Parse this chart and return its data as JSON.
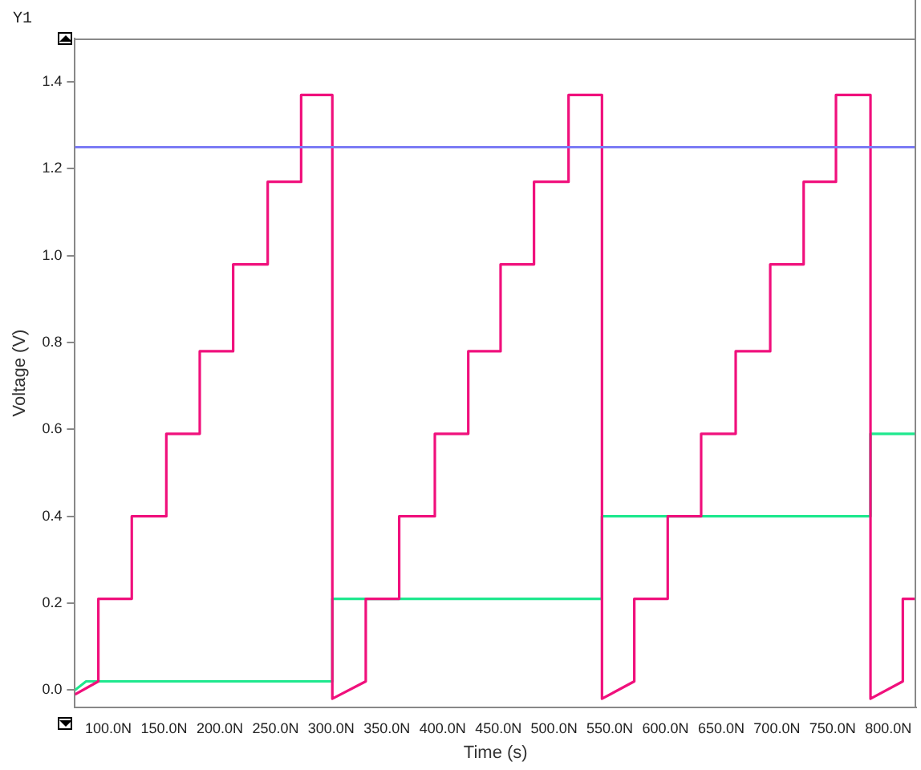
{
  "chart_data": {
    "type": "line",
    "xlabel": "Time (s)",
    "ylabel": "Voltage (V)",
    "annotations": [
      "Y1"
    ],
    "xlim": [
      70,
      825
    ],
    "xticks": [
      {
        "value": 100,
        "label": "100.0N"
      },
      {
        "value": 150,
        "label": "150.0N"
      },
      {
        "value": 200,
        "label": "200.0N"
      },
      {
        "value": 250,
        "label": "250.0N"
      },
      {
        "value": 300,
        "label": "300.0N"
      },
      {
        "value": 350,
        "label": "350.0N"
      },
      {
        "value": 400,
        "label": "400.0N"
      },
      {
        "value": 450,
        "label": "450.0N"
      },
      {
        "value": 500,
        "label": "500.0N"
      },
      {
        "value": 550,
        "label": "550.0N"
      },
      {
        "value": 600,
        "label": "600.0N"
      },
      {
        "value": 650,
        "label": "650.0N"
      },
      {
        "value": 700,
        "label": "700.0N"
      },
      {
        "value": 750,
        "label": "750.0N"
      },
      {
        "value": 800,
        "label": "800.0N"
      }
    ],
    "ylim": [
      -0.04,
      1.5
    ],
    "yticks": [
      {
        "value": 0,
        "label": "0.0"
      },
      0.2,
      0.4,
      0.6,
      0.8,
      {
        "value": 1,
        "label": "1.0"
      },
      1.2,
      1.4
    ],
    "grid": false,
    "legend": false,
    "marker": "none",
    "line_style": "solid",
    "ref_lines": [
      {
        "axis": "y",
        "value": 1.25,
        "color": "#7b7bf5"
      }
    ],
    "series": [
      {
        "color": "#f0107c",
        "x": [
          70,
          91,
          91,
          121,
          121,
          152,
          152,
          182,
          182,
          212,
          212,
          243,
          243,
          273,
          273,
          301,
          301,
          331,
          331,
          361,
          361,
          393,
          393,
          423,
          423,
          452,
          452,
          482,
          482,
          513,
          513,
          543,
          543,
          572,
          572,
          602,
          602,
          632,
          632,
          663,
          663,
          694,
          694,
          724,
          724,
          753,
          753,
          784,
          784,
          813,
          813,
          825
        ],
        "values": [
          -0.01,
          0.02,
          0.21,
          0.21,
          0.4,
          0.4,
          0.59,
          0.59,
          0.78,
          0.78,
          0.98,
          0.98,
          1.17,
          1.17,
          1.37,
          1.37,
          -0.02,
          0.02,
          0.21,
          0.21,
          0.4,
          0.4,
          0.59,
          0.59,
          0.78,
          0.78,
          0.98,
          0.98,
          1.17,
          1.17,
          1.37,
          1.37,
          -0.02,
          0.02,
          0.21,
          0.21,
          0.4,
          0.4,
          0.59,
          0.59,
          0.78,
          0.78,
          0.98,
          0.98,
          1.17,
          1.17,
          1.37,
          1.37,
          -0.02,
          0.02,
          0.21,
          0.21
        ]
      },
      {
        "color": "#1ee88e",
        "x": [
          70,
          80,
          301,
          301,
          543,
          543,
          784,
          784,
          825
        ],
        "values": [
          0.0,
          0.02,
          0.02,
          0.21,
          0.21,
          0.4,
          0.4,
          0.59,
          0.59
        ]
      }
    ]
  }
}
